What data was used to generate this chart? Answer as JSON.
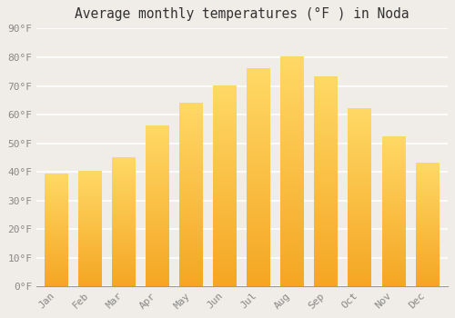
{
  "title": "Average monthly temperatures (°F ) in Noda",
  "months": [
    "Jan",
    "Feb",
    "Mar",
    "Apr",
    "May",
    "Jun",
    "Jul",
    "Aug",
    "Sep",
    "Oct",
    "Nov",
    "Dec"
  ],
  "values": [
    39,
    40,
    45,
    56,
    64,
    70,
    76,
    80,
    73,
    62,
    52,
    43
  ],
  "bar_color_top": "#F5A623",
  "bar_color_bottom": "#FFD966",
  "ylim": [
    0,
    90
  ],
  "yticks": [
    0,
    10,
    20,
    30,
    40,
    50,
    60,
    70,
    80,
    90
  ],
  "ytick_labels": [
    "0°F",
    "10°F",
    "20°F",
    "30°F",
    "40°F",
    "50°F",
    "60°F",
    "70°F",
    "80°F",
    "90°F"
  ],
  "background_color": "#f0ede8",
  "grid_color": "#ffffff",
  "title_fontsize": 10.5,
  "tick_fontsize": 8,
  "xlabel_rotation": 45,
  "bar_width": 0.7
}
